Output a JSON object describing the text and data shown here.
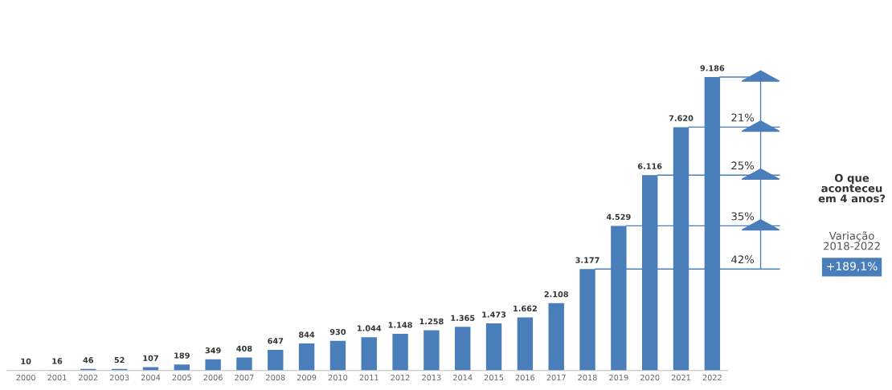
{
  "chart_data": {
    "type": "bar",
    "categories": [
      "2000",
      "2001",
      "2002",
      "2003",
      "2004",
      "2005",
      "2006",
      "2007",
      "2008",
      "2009",
      "2010",
      "2011",
      "2012",
      "2013",
      "2014",
      "2015",
      "2016",
      "2017",
      "2018",
      "2019",
      "2020",
      "2021",
      "2022"
    ],
    "values": [
      10,
      16,
      46,
      52,
      107,
      189,
      349,
      408,
      647,
      844,
      930,
      1044,
      1148,
      1258,
      1365,
      1473,
      1662,
      2108,
      3177,
      4529,
      6116,
      7620,
      9186
    ],
    "value_labels": [
      "10",
      "16",
      "46",
      "52",
      "107",
      "189",
      "349",
      "408",
      "647",
      "844",
      "930",
      "1.044",
      "1.148",
      "1.258",
      "1.365",
      "1.473",
      "1.662",
      "2.108",
      "3.177",
      "4.529",
      "6.116",
      "7.620",
      "9.186"
    ],
    "color": "#4a7ebb",
    "grid": false,
    "tick_labels": "x",
    "annotations": [
      "42%",
      "35%",
      "25%",
      "21%",
      "O que\naconteceu\nem 4 anos?",
      "Variação\n2018-2022",
      "+189,1%"
    ]
  }
}
